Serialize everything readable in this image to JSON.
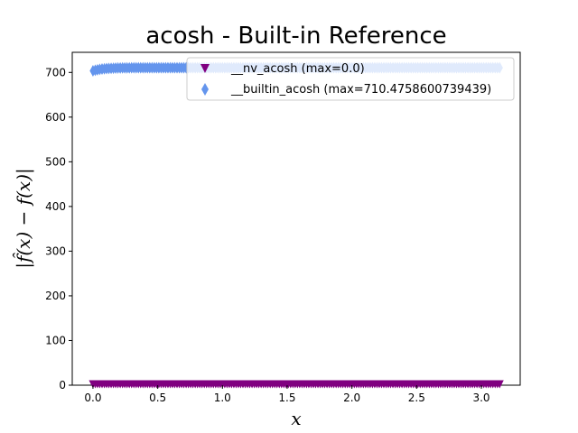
{
  "chart_data": {
    "type": "scatter",
    "title": "acosh - Built-in Reference",
    "xlabel": "x",
    "ylabel": "|f̂(x) − f(x)|",
    "xlim": [
      -0.16,
      3.3
    ],
    "ylim": [
      0,
      745
    ],
    "xticks": [
      "0.0",
      "0.5",
      "1.0",
      "1.5",
      "2.0",
      "2.5",
      "3.0"
    ],
    "xtick_values": [
      0,
      0.5,
      1.0,
      1.5,
      2.0,
      2.5,
      3.0
    ],
    "yticks": [
      "0",
      "100",
      "200",
      "300",
      "400",
      "500",
      "600",
      "700"
    ],
    "ytick_values": [
      0,
      100,
      200,
      300,
      400,
      500,
      600,
      700
    ],
    "x_range": [
      0.0,
      3.1416
    ],
    "grid": false,
    "legend_position": "top-right",
    "series": [
      {
        "name": "__nv_acosh (max=0.0)",
        "marker": "triangle-down",
        "color": "#800080",
        "y_start": 0.0,
        "y_end": 0.0
      },
      {
        "name": "__builtin_acosh (max=710.4758600739439)",
        "marker": "thin-diamond",
        "color": "#6495ED",
        "y_start": 703.5,
        "y_end": 710.4758600739439
      }
    ]
  }
}
